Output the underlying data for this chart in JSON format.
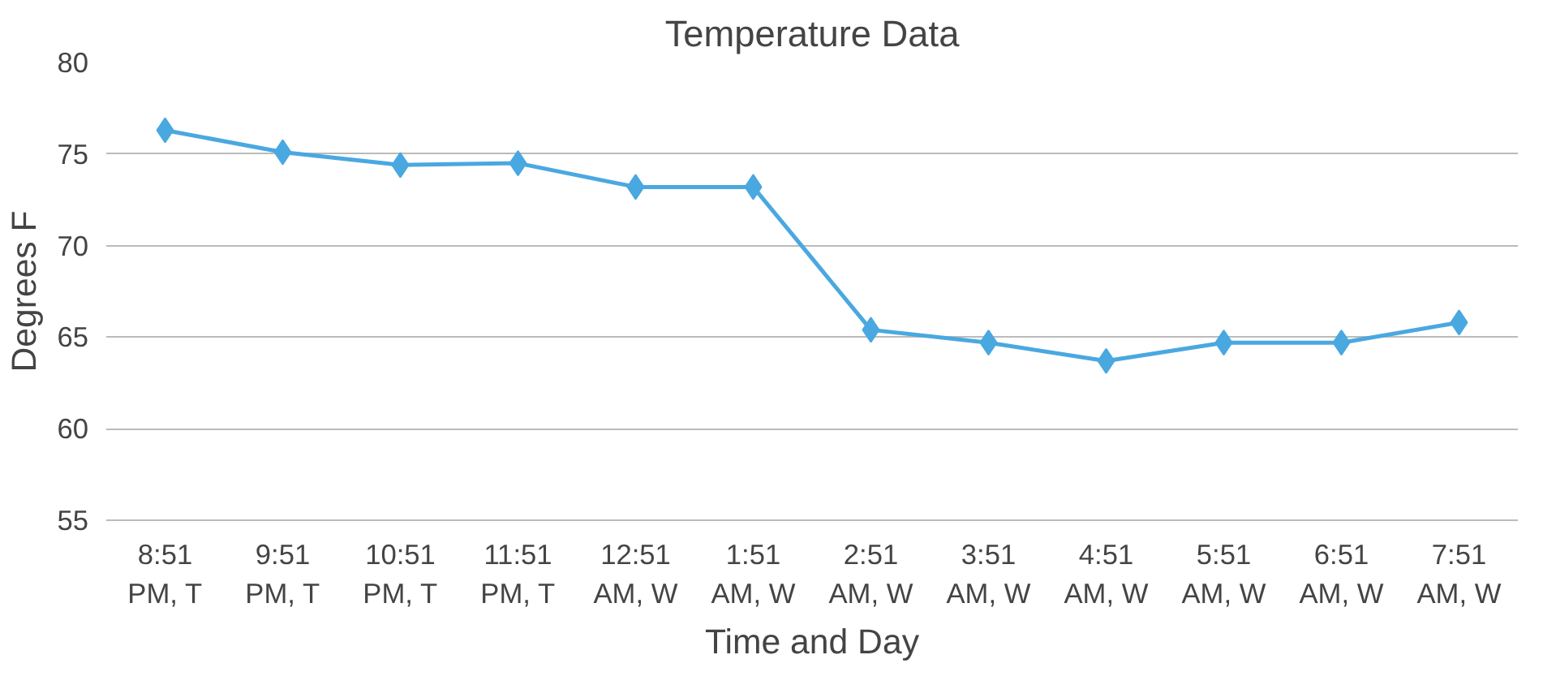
{
  "chart_data": {
    "type": "line",
    "title": "Temperature Data",
    "xlabel": "Time and Day",
    "ylabel": "Degrees F",
    "categories": [
      "8:51\nPM, T",
      "9:51\nPM, T",
      "10:51\nPM, T",
      "11:51\nPM, T",
      "12:51\nAM, W",
      "1:51\nAM, W",
      "2:51\nAM, W",
      "3:51\nAM, W",
      "4:51\nAM, W",
      "5:51\nAM, W",
      "6:51\nAM, W",
      "7:51\nAM, W"
    ],
    "series": [
      {
        "color": "#4aa8e0",
        "values": [
          76.3,
          75.1,
          74.4,
          74.5,
          73.2,
          73.2,
          65.4,
          64.7,
          63.7,
          64.7,
          64.7,
          65.8
        ]
      }
    ],
    "ylim": [
      55,
      80
    ],
    "yticks": [
      55,
      60,
      65,
      70,
      75,
      80
    ],
    "grid": "y",
    "marker": "diamond",
    "line_style": "solid"
  }
}
